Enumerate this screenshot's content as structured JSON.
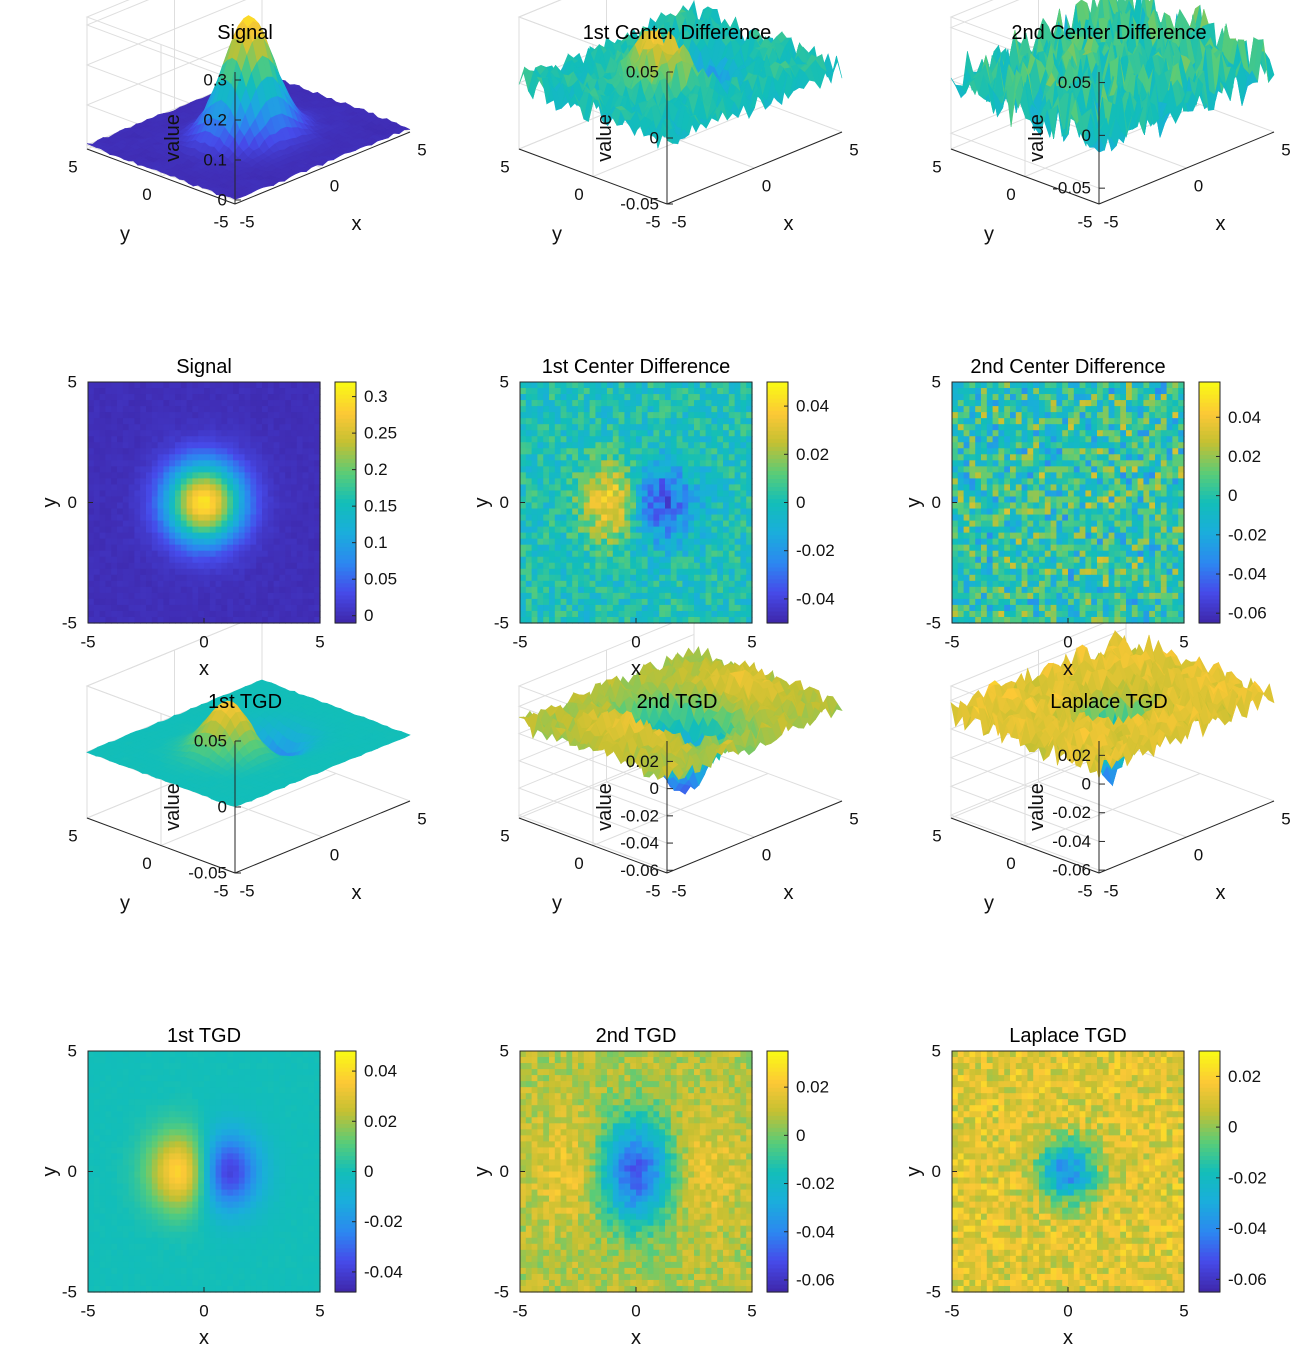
{
  "colormap": "parula",
  "chart_data": [
    {
      "id": "s3",
      "type": "surface3d",
      "title": "Signal",
      "function": "signal",
      "xlabel": "x",
      "ylabel": "y",
      "zlabel": "value",
      "xlim": [
        -5,
        5
      ],
      "ylim": [
        -5,
        5
      ],
      "xticks": [
        "-5",
        "0",
        "5"
      ],
      "yticks": [
        "-5",
        "0",
        "5"
      ],
      "zlim": [
        -0.01,
        0.32
      ],
      "zticks": [
        0,
        0.1,
        0.2,
        0.3
      ],
      "ztick_labels": [
        "0",
        "0.1",
        "0.2",
        "0.3"
      ],
      "grid": true
    },
    {
      "id": "c3",
      "type": "surface3d",
      "title": "1st Center Difference",
      "function": "cd1",
      "xlabel": "x",
      "ylabel": "y",
      "zlabel": "value",
      "xlim": [
        -5,
        5
      ],
      "ylim": [
        -5,
        5
      ],
      "xticks": [
        "-5",
        "0",
        "5"
      ],
      "yticks": [
        "-5",
        "0",
        "5"
      ],
      "zlim": [
        -0.05,
        0.05
      ],
      "zticks": [
        -0.05,
        0,
        0.05
      ],
      "ztick_labels": [
        "-0.05",
        "0",
        "0.05"
      ],
      "grid": true
    },
    {
      "id": "d3",
      "type": "surface3d",
      "title": "2nd Center Difference",
      "function": "cd2",
      "xlabel": "x",
      "ylabel": "y",
      "zlabel": "value",
      "xlim": [
        -5,
        5
      ],
      "ylim": [
        -5,
        5
      ],
      "xticks": [
        "-5",
        "0",
        "5"
      ],
      "yticks": [
        "-5",
        "0",
        "5"
      ],
      "zlim": [
        -0.065,
        0.06
      ],
      "zticks": [
        -0.05,
        0,
        0.05
      ],
      "ztick_labels": [
        "-0.05",
        "0",
        "0.05"
      ],
      "grid": true
    },
    {
      "id": "s2",
      "type": "heatmap",
      "title": "Signal",
      "function": "signal",
      "xlabel": "x",
      "ylabel": "y",
      "xlim": [
        -5,
        5
      ],
      "ylim": [
        -5,
        5
      ],
      "xticks": [
        "-5",
        "0",
        "5"
      ],
      "yticks": [
        "-5",
        "0",
        "5"
      ],
      "clim": [
        -0.01,
        0.32
      ],
      "colorbar_ticks": [
        0,
        0.05,
        0.1,
        0.15,
        0.2,
        0.25,
        0.3
      ],
      "colorbar_tick_labels": [
        "0",
        "0.05",
        "0.1",
        "0.15",
        "0.2",
        "0.25",
        "0.3"
      ]
    },
    {
      "id": "c2",
      "type": "heatmap",
      "title": "1st Center Difference",
      "function": "cd1",
      "xlabel": "x",
      "ylabel": "y",
      "xlim": [
        -5,
        5
      ],
      "ylim": [
        -5,
        5
      ],
      "xticks": [
        "-5",
        "0",
        "5"
      ],
      "yticks": [
        "-5",
        "0",
        "5"
      ],
      "clim": [
        -0.05,
        0.05
      ],
      "colorbar_ticks": [
        -0.04,
        -0.02,
        0,
        0.02,
        0.04
      ],
      "colorbar_tick_labels": [
        "-0.04",
        "-0.02",
        "0",
        "0.02",
        "0.04"
      ]
    },
    {
      "id": "d2",
      "type": "heatmap",
      "title": "2nd Center Difference",
      "function": "cd2",
      "xlabel": "x",
      "ylabel": "y",
      "xlim": [
        -5,
        5
      ],
      "ylim": [
        -5,
        5
      ],
      "xticks": [
        "-5",
        "0",
        "5"
      ],
      "yticks": [
        "-5",
        "0",
        "5"
      ],
      "clim": [
        -0.065,
        0.058
      ],
      "colorbar_ticks": [
        -0.06,
        -0.04,
        -0.02,
        0,
        0.02,
        0.04
      ],
      "colorbar_tick_labels": [
        "-0.06",
        "-0.04",
        "-0.02",
        "0",
        "0.02",
        "0.04"
      ]
    },
    {
      "id": "t3",
      "type": "surface3d",
      "title": "1st TGD",
      "function": "tgd1",
      "xlabel": "x",
      "ylabel": "y",
      "zlabel": "value",
      "xlim": [
        -5,
        5
      ],
      "ylim": [
        -5,
        5
      ],
      "xticks": [
        "-5",
        "0",
        "5"
      ],
      "yticks": [
        "-5",
        "0",
        "5"
      ],
      "zlim": [
        -0.05,
        0.05
      ],
      "zticks": [
        -0.05,
        0,
        0.05
      ],
      "ztick_labels": [
        "-0.05",
        "0",
        "0.05"
      ],
      "grid": true
    },
    {
      "id": "u3",
      "type": "surface3d",
      "title": "2nd TGD",
      "function": "tgd2",
      "xlabel": "x",
      "ylabel": "y",
      "zlabel": "value",
      "xlim": [
        -5,
        5
      ],
      "ylim": [
        -5,
        5
      ],
      "xticks": [
        "-5",
        "0",
        "5"
      ],
      "yticks": [
        "-5",
        "0",
        "5"
      ],
      "zlim": [
        -0.062,
        0.035
      ],
      "zticks": [
        -0.06,
        -0.04,
        -0.02,
        0,
        0.02
      ],
      "ztick_labels": [
        "-0.06",
        "-0.04",
        "-0.02",
        "0",
        "0.02"
      ],
      "grid": true
    },
    {
      "id": "l3",
      "type": "surface3d",
      "title": "Laplace TGD",
      "function": "lap",
      "xlabel": "x",
      "ylabel": "y",
      "zlabel": "value",
      "xlim": [
        -5,
        5
      ],
      "ylim": [
        -5,
        5
      ],
      "xticks": [
        "-5",
        "0",
        "5"
      ],
      "yticks": [
        "-5",
        "0",
        "5"
      ],
      "zlim": [
        -0.062,
        0.03
      ],
      "zticks": [
        -0.06,
        -0.04,
        -0.02,
        0,
        0.02
      ],
      "ztick_labels": [
        "-0.06",
        "-0.04",
        "-0.02",
        "0",
        "0.02"
      ],
      "grid": true
    },
    {
      "id": "t2",
      "type": "heatmap",
      "title": "1st TGD",
      "function": "tgd1",
      "xlabel": "x",
      "ylabel": "y",
      "xlim": [
        -5,
        5
      ],
      "ylim": [
        -5,
        5
      ],
      "xticks": [
        "-5",
        "0",
        "5"
      ],
      "yticks": [
        "-5",
        "0",
        "5"
      ],
      "clim": [
        -0.048,
        0.048
      ],
      "colorbar_ticks": [
        -0.04,
        -0.02,
        0,
        0.02,
        0.04
      ],
      "colorbar_tick_labels": [
        "-0.04",
        "-0.02",
        "0",
        "0.02",
        "0.04"
      ]
    },
    {
      "id": "u2",
      "type": "heatmap",
      "title": "2nd TGD",
      "function": "tgd2",
      "xlabel": "x",
      "ylabel": "y",
      "xlim": [
        -5,
        5
      ],
      "ylim": [
        -5,
        5
      ],
      "xticks": [
        "-5",
        "0",
        "5"
      ],
      "yticks": [
        "-5",
        "0",
        "5"
      ],
      "clim": [
        -0.065,
        0.035
      ],
      "colorbar_ticks": [
        -0.06,
        -0.04,
        -0.02,
        0,
        0.02
      ],
      "colorbar_tick_labels": [
        "-0.06",
        "-0.04",
        "-0.02",
        "0",
        "0.02"
      ]
    },
    {
      "id": "l2",
      "type": "heatmap",
      "title": "Laplace TGD",
      "function": "lap",
      "xlabel": "x",
      "ylabel": "y",
      "xlim": [
        -5,
        5
      ],
      "ylim": [
        -5,
        5
      ],
      "xticks": [
        "-5",
        "0",
        "5"
      ],
      "yticks": [
        "-5",
        "0",
        "5"
      ],
      "clim": [
        -0.065,
        0.03
      ],
      "colorbar_ticks": [
        -0.06,
        -0.04,
        -0.02,
        0,
        0.02
      ],
      "colorbar_tick_labels": [
        "-0.06",
        "-0.04",
        "-0.02",
        "0",
        "0.02"
      ]
    }
  ]
}
